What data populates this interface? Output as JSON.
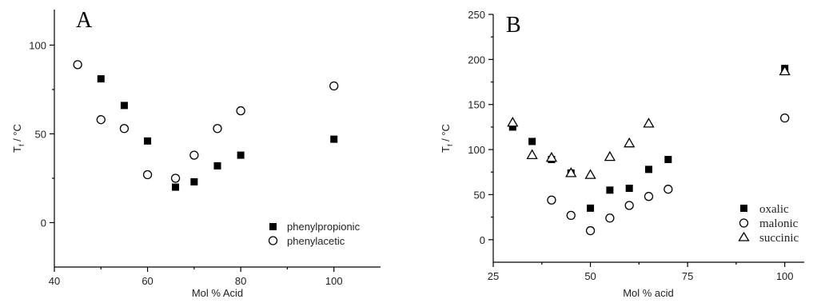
{
  "chart_data": [
    {
      "type": "scatter",
      "panel_label": "A",
      "xlabel": "Mol % Acid",
      "ylabel_main": "T",
      "ylabel_sub": "f",
      "ylabel_tail": " / °C",
      "xlim": [
        40,
        110
      ],
      "ylim": [
        -25,
        120
      ],
      "xticks": [
        40,
        60,
        80,
        100
      ],
      "yticks": [
        0,
        50,
        100
      ],
      "series": [
        {
          "name": "phenylpropionic",
          "marker": "filled-square",
          "points": [
            [
              50,
              81
            ],
            [
              55,
              66
            ],
            [
              60,
              46
            ],
            [
              66,
              20
            ],
            [
              70,
              23
            ],
            [
              75,
              32
            ],
            [
              80,
              38
            ],
            [
              100,
              47
            ]
          ]
        },
        {
          "name": "phenylacetic",
          "marker": "open-circle",
          "points": [
            [
              45,
              89
            ],
            [
              50,
              58
            ],
            [
              55,
              53
            ],
            [
              60,
              27
            ],
            [
              66,
              25
            ],
            [
              70,
              38
            ],
            [
              75,
              53
            ],
            [
              80,
              63
            ],
            [
              100,
              77
            ]
          ]
        }
      ],
      "legend_position": "bottom-right"
    },
    {
      "type": "scatter",
      "panel_label": "B",
      "xlabel": "Mol % acid",
      "ylabel_main": "T",
      "ylabel_sub": "f",
      "ylabel_tail": " / °C",
      "xlim": [
        25,
        105
      ],
      "ylim": [
        -25,
        250
      ],
      "xticks": [
        25,
        50,
        75,
        100
      ],
      "yticks": [
        0,
        50,
        100,
        150,
        200,
        250
      ],
      "series": [
        {
          "name": "oxalic",
          "marker": "filled-square",
          "points": [
            [
              30,
              125
            ],
            [
              35,
              109
            ],
            [
              40,
              89
            ],
            [
              45,
              74
            ],
            [
              50,
              35
            ],
            [
              55,
              55
            ],
            [
              60,
              57
            ],
            [
              65,
              78
            ],
            [
              70,
              89
            ],
            [
              100,
              190
            ]
          ]
        },
        {
          "name": "malonic",
          "marker": "open-circle",
          "points": [
            [
              40,
              44
            ],
            [
              45,
              27
            ],
            [
              50,
              10
            ],
            [
              55,
              24
            ],
            [
              60,
              38
            ],
            [
              65,
              48
            ],
            [
              70,
              56
            ],
            [
              100,
              135
            ]
          ]
        },
        {
          "name": "succinic",
          "marker": "open-triangle",
          "points": [
            [
              30,
              130
            ],
            [
              35,
              94
            ],
            [
              40,
              91
            ],
            [
              45,
              74
            ],
            [
              50,
              72
            ],
            [
              55,
              92
            ],
            [
              60,
              107
            ],
            [
              65,
              129
            ],
            [
              100,
              187
            ]
          ]
        }
      ],
      "legend_position": "bottom-right"
    }
  ]
}
